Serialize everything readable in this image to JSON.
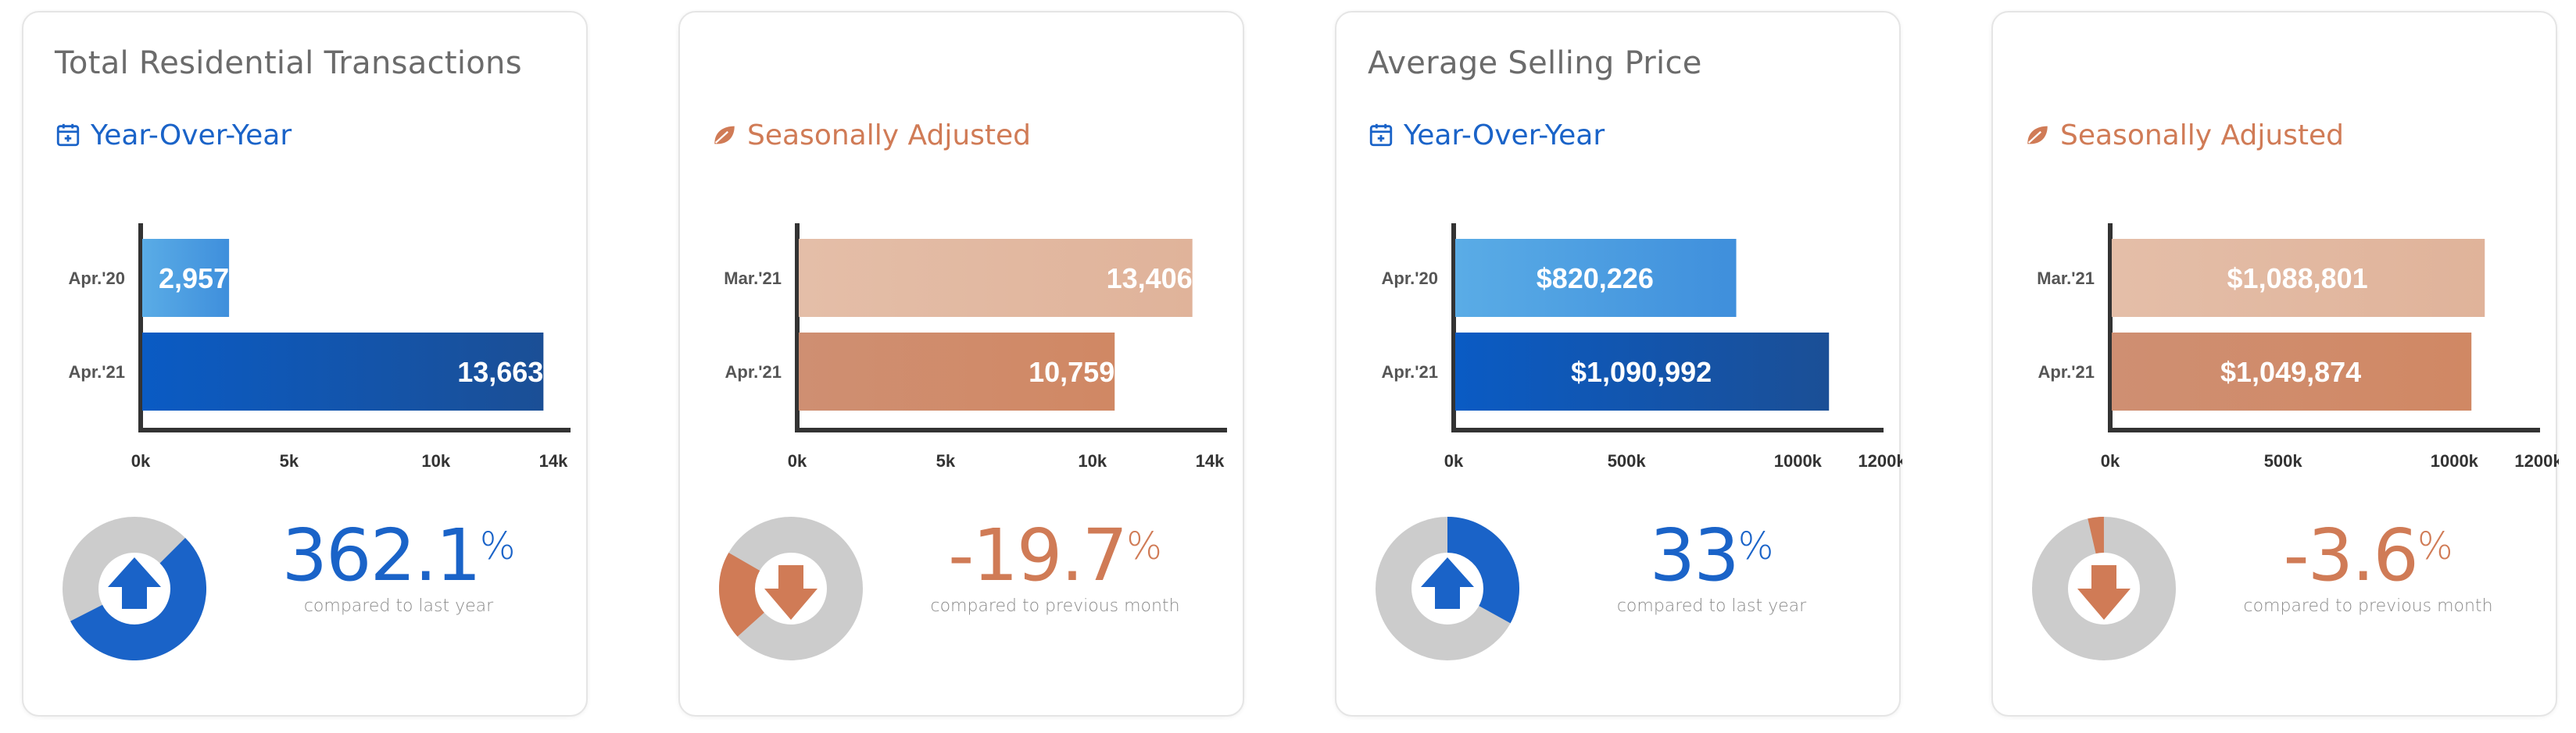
{
  "colors": {
    "blue": "#1a63c8",
    "orange": "#d07b56",
    "grey_ring": "#cccccc"
  },
  "cards": [
    {
      "title": "Total Residential Transactions",
      "subtitle": "Year-Over-Year",
      "subtitle_icon": "calendar-plus-icon",
      "theme": "blue",
      "percent": {
        "value": "362.1",
        "symbol": "%",
        "caption": "compared to last year",
        "direction": "up",
        "ring_fraction": 0.55,
        "ring_start_deg": 45
      },
      "chart_data": {
        "type": "bar",
        "orientation": "horizontal",
        "categories": [
          "Apr.'20",
          "Apr.'21"
        ],
        "values": [
          2957,
          13663
        ],
        "labels": [
          "2,957",
          "13,663"
        ],
        "xlim": [
          0,
          14000
        ],
        "xticks": [
          0,
          5000,
          10000,
          14000
        ],
        "xtick_labels": [
          "0k",
          "5k",
          "10k",
          "14k"
        ]
      }
    },
    {
      "title": "",
      "subtitle": "Seasonally Adjusted",
      "subtitle_icon": "leaf-icon",
      "theme": "orange",
      "percent": {
        "value": "-19.7",
        "symbol": "%",
        "caption": "compared to previous month",
        "direction": "down",
        "ring_fraction": 0.2,
        "ring_start_deg": 228
      },
      "chart_data": {
        "type": "bar",
        "orientation": "horizontal",
        "categories": [
          "Mar.'21",
          "Apr.'21"
        ],
        "values": [
          13406,
          10759
        ],
        "labels": [
          "13,406",
          "10,759"
        ],
        "xlim": [
          0,
          14000
        ],
        "xticks": [
          0,
          5000,
          10000,
          14000
        ],
        "xtick_labels": [
          "0k",
          "5k",
          "10k",
          "14k"
        ]
      }
    },
    {
      "title": "Average Selling Price",
      "subtitle": "Year-Over-Year",
      "subtitle_icon": "calendar-plus-icon",
      "theme": "blue",
      "percent": {
        "value": "33",
        "symbol": "%",
        "caption": "compared to last year",
        "direction": "up",
        "ring_fraction": 0.33,
        "ring_start_deg": 0
      },
      "chart_data": {
        "type": "bar",
        "orientation": "horizontal",
        "categories": [
          "Apr.'20",
          "Apr.'21"
        ],
        "values": [
          820226,
          1090992
        ],
        "labels": [
          "$820,226",
          "$1,090,992"
        ],
        "xlim": [
          0,
          1200000
        ],
        "xticks": [
          0,
          500000,
          1000000,
          1200000
        ],
        "xtick_labels": [
          "0k",
          "500k",
          "1000k",
          "1200k"
        ]
      }
    },
    {
      "title": "",
      "subtitle": "Seasonally Adjusted",
      "subtitle_icon": "leaf-icon",
      "theme": "orange",
      "percent": {
        "value": "-3.6",
        "symbol": "%",
        "caption": "compared to previous month",
        "direction": "down",
        "ring_fraction": 0.036,
        "ring_start_deg": 347
      },
      "chart_data": {
        "type": "bar",
        "orientation": "horizontal",
        "categories": [
          "Mar.'21",
          "Apr.'21"
        ],
        "values": [
          1088801,
          1049874
        ],
        "labels": [
          "$1,088,801",
          "$1,049,874"
        ],
        "xlim": [
          0,
          1200000
        ],
        "xticks": [
          0,
          500000,
          1000000,
          1200000
        ],
        "xtick_labels": [
          "0k",
          "500k",
          "1000k",
          "1200k"
        ]
      }
    }
  ]
}
